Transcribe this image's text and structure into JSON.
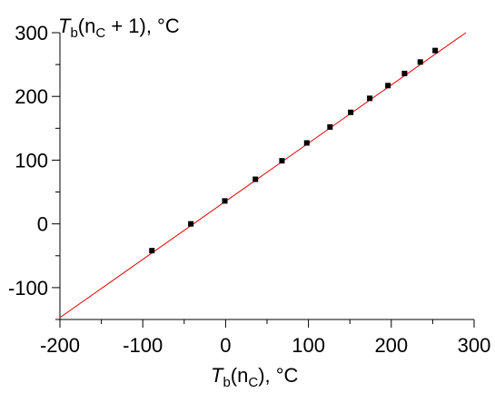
{
  "chart_data": {
    "type": "scatter",
    "ylabel": {
      "var": "T",
      "sub": "b",
      "mid": "(n",
      "sub2": "C",
      "rest": " + 1), °C"
    },
    "xlabel": {
      "var": "T",
      "sub": "b",
      "mid": "(n",
      "sub2": "C",
      "rest": "), °C"
    },
    "xlim": [
      -200,
      300
    ],
    "ylim": [
      -150,
      300
    ],
    "x_ticks": [
      -200,
      -100,
      0,
      100,
      200,
      300
    ],
    "y_ticks": [
      -100,
      0,
      100,
      200,
      300
    ],
    "x_tick_labels": [
      "-200",
      "-100",
      "0",
      "100",
      "200",
      "300"
    ],
    "y_tick_labels": [
      "-100",
      "0",
      "100",
      "200",
      "300"
    ],
    "grid": false,
    "legend": "none",
    "series": [
      {
        "marker": "square",
        "color": "#000000",
        "x": [
          -89,
          -42,
          -1,
          36,
          68,
          98,
          126,
          151,
          174,
          196,
          216,
          235,
          253
        ],
        "y": [
          -42,
          0,
          36,
          70,
          99,
          127,
          152,
          175,
          197,
          217,
          236,
          254,
          272
        ]
      }
    ],
    "fit_line": {
      "color": "#e00000",
      "x": [
        -200,
        290
      ],
      "y": [
        -147,
        300
      ]
    }
  }
}
